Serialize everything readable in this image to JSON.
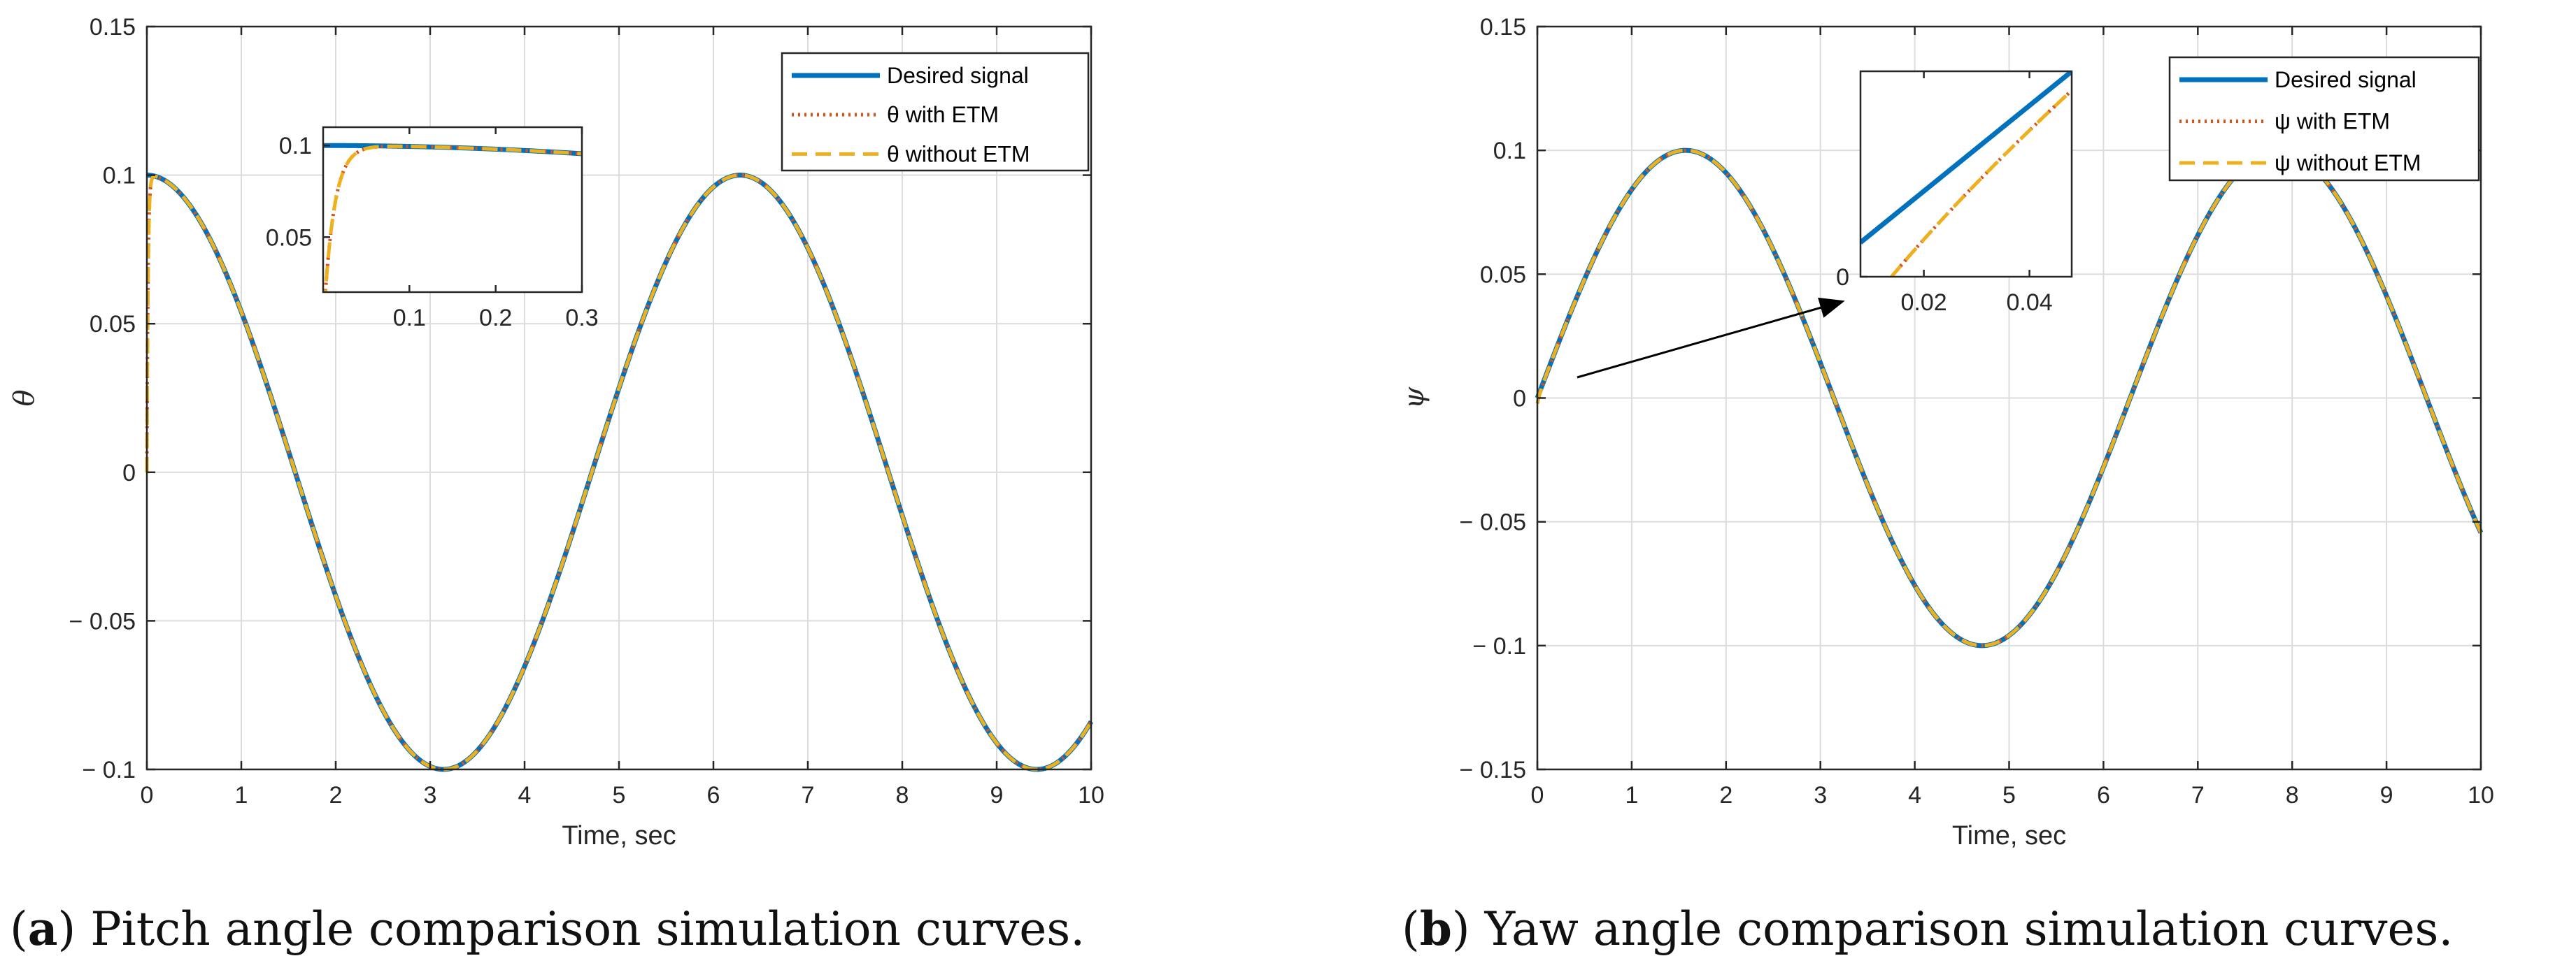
{
  "chart_data": [
    {
      "type": "line",
      "id": "a",
      "caption_letter": "a",
      "caption_text": "Pitch angle comparison simulation curves.",
      "xlabel": "Time, sec",
      "ylabel": "θ",
      "xlim": [
        0,
        10
      ],
      "ylim": [
        -0.1,
        0.15
      ],
      "xticks": [
        0,
        1,
        2,
        3,
        4,
        5,
        6,
        7,
        8,
        9,
        10
      ],
      "yticks": [
        -0.1,
        -0.05,
        0,
        0.05,
        0.1,
        0.15
      ],
      "xtick_labels": [
        "0",
        "1",
        "2",
        "3",
        "4",
        "5",
        "6",
        "7",
        "8",
        "9",
        "10"
      ],
      "ytick_labels": [
        "− 0.1",
        "− 0.05",
        "0",
        "0.05",
        "0.1",
        "0.15"
      ],
      "grid": true,
      "legend_position": "top-right",
      "series": [
        {
          "name": "Desired signal",
          "legend_label": "Desired signal",
          "color": "#0072BD",
          "style": "solid",
          "formula": "0.1*cos(t)"
        },
        {
          "name": "θ with ETM",
          "legend_label": "θ with ETM",
          "color": "#D95319",
          "style": "dotted",
          "formula": "0.1*cos(t)*(1-exp(-t/0.012))"
        },
        {
          "name": "θ without ETM",
          "legend_label": "θ without ETM",
          "color": "#EDB120",
          "style": "dashed",
          "formula": "0.1*cos(t)*(1-exp(-t/0.012))"
        }
      ],
      "inset": {
        "xlim": [
          0.0,
          0.3
        ],
        "ylim": [
          0.02,
          0.11
        ],
        "xticks": [
          0.1,
          0.2,
          0.3
        ],
        "yticks": [
          0.05,
          0.1
        ],
        "xtick_labels": [
          "0.1",
          "0.2",
          "0.3"
        ],
        "ytick_labels": [
          "0.05",
          "0.1"
        ]
      }
    },
    {
      "type": "line",
      "id": "b",
      "caption_letter": "b",
      "caption_text": "Yaw angle comparison simulation curves.",
      "xlabel": "Time, sec",
      "ylabel": "ψ",
      "xlim": [
        0,
        10
      ],
      "ylim": [
        -0.15,
        0.15
      ],
      "xticks": [
        0,
        1,
        2,
        3,
        4,
        5,
        6,
        7,
        8,
        9,
        10
      ],
      "yticks": [
        -0.15,
        -0.1,
        -0.05,
        0,
        0.05,
        0.1,
        0.15
      ],
      "xtick_labels": [
        "0",
        "1",
        "2",
        "3",
        "4",
        "5",
        "6",
        "7",
        "8",
        "9",
        "10"
      ],
      "ytick_labels": [
        "− 0.15",
        "− 0.1",
        "− 0.05",
        "0",
        "0.05",
        "0.1",
        "0.15"
      ],
      "grid": true,
      "legend_position": "top-right",
      "series": [
        {
          "name": "Desired signal",
          "legend_label": "Desired signal",
          "color": "#0072BD",
          "style": "solid",
          "formula": "0.1*sin(t)"
        },
        {
          "name": "ψ with ETM",
          "legend_label": "ψ with ETM",
          "color": "#D95319",
          "style": "dotted",
          "formula": "0.1*sin(t) - 0.0022*exp(-t/0.03)"
        },
        {
          "name": "ψ without ETM",
          "legend_label": "ψ without ETM",
          "color": "#EDB120",
          "style": "dashed",
          "formula": "0.1*sin(t) - 0.0022*exp(-t/0.03)"
        }
      ],
      "inset": {
        "xlim": [
          0.008,
          0.048
        ],
        "ylim": [
          0.0,
          0.0048
        ],
        "xticks": [
          0.02,
          0.04
        ],
        "yticks": [
          0
        ],
        "xtick_labels": [
          "0.02",
          "0.04"
        ],
        "ytick_labels": [
          "0"
        ]
      },
      "annotation": "arrow pointing from the origin region to the zoomed inset"
    }
  ]
}
